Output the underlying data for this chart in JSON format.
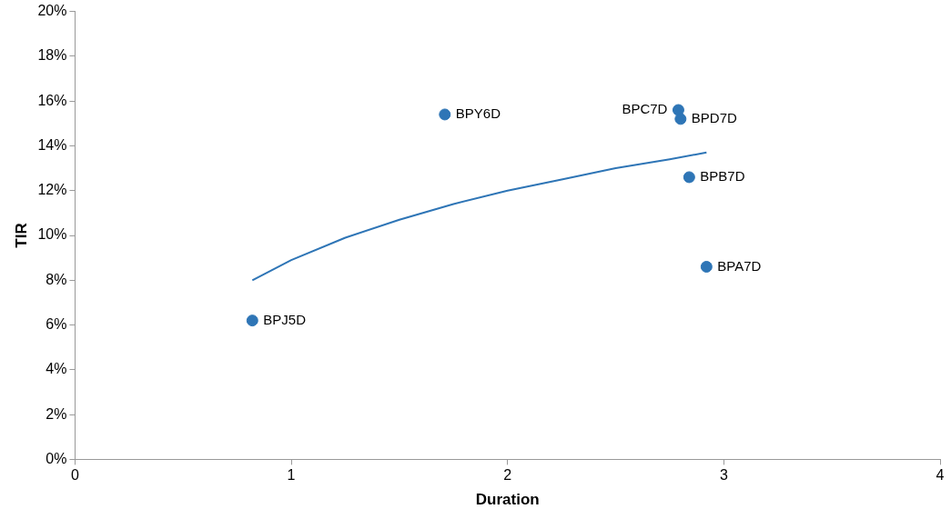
{
  "chart_data": {
    "type": "scatter",
    "xlabel": "Duration",
    "ylabel": "TIR",
    "series": [
      {
        "color": "#2e75b6",
        "x": [
          0.82,
          1.71,
          2.79,
          2.8,
          2.84,
          2.92
        ],
        "values": [
          6.2,
          15.4,
          15.6,
          15.2,
          12.6,
          8.6
        ],
        "marker": "circle"
      },
      {
        "type": "line",
        "color": "#2e75b6",
        "x": [
          0.82,
          1.0,
          1.25,
          1.5,
          1.75,
          2.0,
          2.25,
          2.5,
          2.75,
          2.92
        ],
        "values": [
          8.0,
          8.9,
          9.9,
          10.7,
          11.4,
          12.0,
          12.5,
          13.0,
          13.4,
          13.7
        ],
        "marker": "none",
        "line_style": "solid"
      }
    ],
    "annotations": [
      {
        "text": "BPJ5D",
        "x": 0.82,
        "y": 6.2
      },
      {
        "text": "BPY6D",
        "x": 1.71,
        "y": 15.4
      },
      {
        "text": "BPC7D",
        "x": 2.79,
        "y": 15.6
      },
      {
        "text": "BPD7D",
        "x": 2.8,
        "y": 15.2
      },
      {
        "text": "BPB7D",
        "x": 2.84,
        "y": 12.6
      },
      {
        "text": "BPA7D",
        "x": 2.92,
        "y": 8.6
      }
    ],
    "xlim": [
      0,
      4
    ],
    "xticks": [
      0,
      1,
      2,
      3,
      4
    ],
    "ylim": [
      0,
      20
    ],
    "yticks": [
      {
        "value": 0,
        "label": "0%"
      },
      {
        "value": 2,
        "label": "2%"
      },
      {
        "value": 4,
        "label": "4%"
      },
      {
        "value": 6,
        "label": "6%"
      },
      {
        "value": 8,
        "label": "8%"
      },
      {
        "value": 10,
        "label": "10%"
      },
      {
        "value": 12,
        "label": "12%"
      },
      {
        "value": 14,
        "label": "14%"
      },
      {
        "value": 16,
        "label": "16%"
      },
      {
        "value": 18,
        "label": "18%"
      },
      {
        "value": 20,
        "label": "20%"
      }
    ],
    "grid": false,
    "legend": false
  }
}
